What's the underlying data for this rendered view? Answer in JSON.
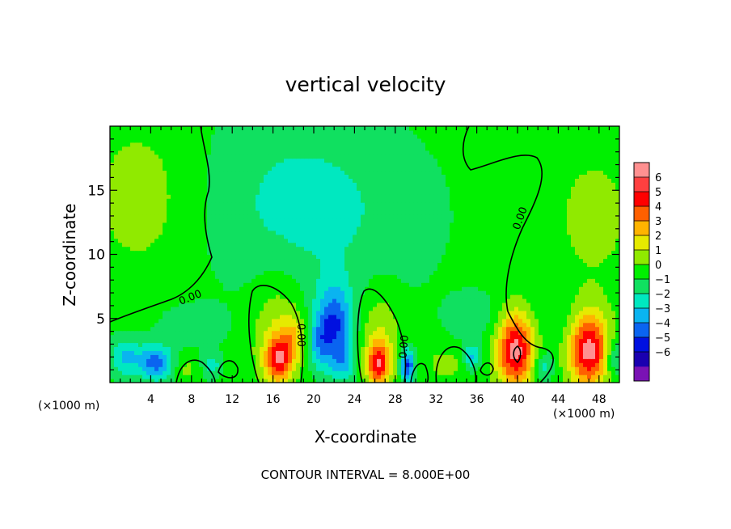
{
  "chart_data": {
    "type": "heatmap",
    "title": "vertical velocity",
    "xlabel": "X-coordinate",
    "ylabel": "Z-coordinate",
    "x_unit_left": "(×1000 m)",
    "x_unit_right": "(×1000 m)",
    "footer": "CONTOUR INTERVAL = 8.000E+00",
    "xlim": [
      0,
      50
    ],
    "ylim": [
      0,
      20
    ],
    "x_ticks": [
      4,
      8,
      12,
      16,
      20,
      24,
      28,
      32,
      36,
      40,
      44,
      48
    ],
    "y_ticks": [
      5,
      10,
      15
    ],
    "contour_label": "0.00",
    "colorbar": {
      "levels": [
        -6,
        -5,
        -4,
        -3,
        -2,
        -1,
        0,
        1,
        2,
        3,
        4,
        5,
        6
      ],
      "labels": [
        "6",
        "5",
        "4",
        "3",
        "2",
        "1",
        "0",
        "−1",
        "−2",
        "−3",
        "−4",
        "−5",
        "−6"
      ],
      "colors": [
        "#7a12b4",
        "#1a00b0",
        "#0010e0",
        "#0a64f0",
        "#0ab4f0",
        "#00e8c0",
        "#10e060",
        "#00f000",
        "#90ea00",
        "#e6ea00",
        "#ffb400",
        "#ff6000",
        "#ff0000",
        "#ff4040",
        "#ff9090"
      ]
    },
    "background_value": 0.3,
    "features": [
      {
        "x": 3.0,
        "z": 14.5,
        "rx": 5.0,
        "rz": 6.0,
        "value": 1.2
      },
      {
        "x": 47.5,
        "z": 13.0,
        "rx": 4.5,
        "rz": 6.0,
        "value": 1.0
      },
      {
        "x": 17.0,
        "z": 15.0,
        "rx": 8.0,
        "rz": 7.0,
        "value": -0.8
      },
      {
        "x": 22.0,
        "z": 13.0,
        "rx": 10.0,
        "rz": 7.0,
        "value": -1.1
      },
      {
        "x": 16.5,
        "z": 4.0,
        "rx": 2.6,
        "rz": 4.5,
        "value": 1.8
      },
      {
        "x": 16.5,
        "z": 1.8,
        "rx": 1.3,
        "rz": 1.8,
        "value": 4.5
      },
      {
        "x": 18.0,
        "z": 3.5,
        "rx": 1.2,
        "rz": 1.8,
        "value": 2.0
      },
      {
        "x": 22.0,
        "z": 4.5,
        "rx": 1.8,
        "rz": 3.0,
        "value": -4.2
      },
      {
        "x": 20.5,
        "z": 3.0,
        "rx": 1.2,
        "rz": 2.0,
        "value": -2.0
      },
      {
        "x": 26.5,
        "z": 3.5,
        "rx": 2.0,
        "rz": 4.0,
        "value": 1.8
      },
      {
        "x": 26.3,
        "z": 1.5,
        "rx": 1.1,
        "rz": 1.6,
        "value": 4.6
      },
      {
        "x": 29.2,
        "z": 1.3,
        "rx": 0.7,
        "rz": 1.3,
        "value": -4.6
      },
      {
        "x": 23.0,
        "z": 1.5,
        "rx": 1.2,
        "rz": 1.3,
        "value": -2.0
      },
      {
        "x": 33.0,
        "z": 1.5,
        "rx": 2.0,
        "rz": 1.3,
        "value": 1.2
      },
      {
        "x": 35.5,
        "z": 2.0,
        "rx": 0.8,
        "rz": 1.0,
        "value": -2.5
      },
      {
        "x": 39.8,
        "z": 2.6,
        "rx": 1.9,
        "rz": 3.0,
        "value": 6.2
      },
      {
        "x": 42.5,
        "z": 1.3,
        "rx": 1.0,
        "rz": 1.2,
        "value": -2.0
      },
      {
        "x": 47.0,
        "z": 2.6,
        "rx": 2.0,
        "rz": 3.0,
        "value": 6.2
      },
      {
        "x": 1.5,
        "z": 2.0,
        "rx": 1.6,
        "rz": 1.5,
        "value": -2.5
      },
      {
        "x": 4.5,
        "z": 1.6,
        "rx": 1.6,
        "rz": 1.4,
        "value": -3.8
      },
      {
        "x": 7.5,
        "z": 1.0,
        "rx": 1.0,
        "rz": 1.0,
        "value": 1.0
      },
      {
        "x": 10.0,
        "z": 1.4,
        "rx": 0.9,
        "rz": 1.0,
        "value": -1.8
      },
      {
        "x": 8.0,
        "z": 4.5,
        "rx": 3.0,
        "rz": 1.5,
        "value": -1.2
      },
      {
        "x": 36.0,
        "z": 5.0,
        "rx": 3.0,
        "rz": 2.0,
        "value": -0.9
      },
      {
        "x": 44.0,
        "z": 5.0,
        "rx": 3.0,
        "rz": 2.0,
        "value": -0.6
      },
      {
        "x": 49.5,
        "z": 2.0,
        "rx": 1.0,
        "rz": 1.5,
        "value": -2.0
      }
    ]
  }
}
